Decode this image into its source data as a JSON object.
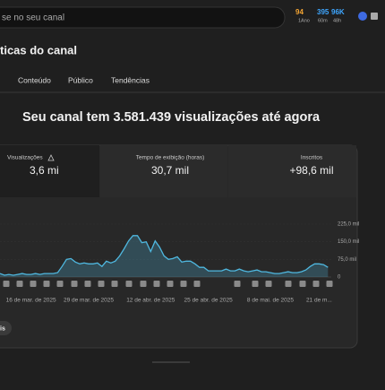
{
  "search": {
    "placeholder": "se no seu canal"
  },
  "stats": [
    {
      "value": 94,
      "label": "1Ano"
    },
    {
      "value": 395,
      "label": "60m"
    },
    {
      "value": "96K",
      "label": "48h"
    }
  ],
  "page_title": "ticas do canal",
  "tabs": [
    "Conteúdo",
    "Público",
    "Tendências"
  ],
  "headline": "Seu canal tem 3.581.439 visualizações até agora",
  "metrics": [
    {
      "label": "Visualizações",
      "value": "3,6 mi"
    },
    {
      "label": "Tempo de exibição (horas)",
      "value": "30,7 mil"
    },
    {
      "label": "Inscritos",
      "value": "+98,6 mil"
    }
  ],
  "chart_data": {
    "type": "line",
    "color": "#4fb8e0",
    "categories": [
      null,
      null,
      null,
      null,
      null,
      null,
      null,
      "16 de mar. de 2025",
      null,
      null,
      null,
      null,
      null,
      null,
      null,
      null,
      null,
      null,
      null,
      null,
      "29 de mar. de 2025",
      null,
      null,
      null,
      null,
      null,
      null,
      null,
      null,
      null,
      null,
      null,
      null,
      null,
      "12 de abr. de 2025",
      null,
      null,
      null,
      null,
      null,
      null,
      null,
      null,
      null,
      null,
      null,
      null,
      "25 de abr. de 2025",
      null,
      null,
      null,
      null,
      null,
      null,
      null,
      null,
      null,
      null,
      null,
      null,
      null,
      "8 de mai. de 2025",
      null,
      null,
      null,
      null,
      null,
      null,
      null,
      null,
      null,
      null,
      "21 de m...",
      null,
      null
    ],
    "values": [
      15000,
      7500,
      11250,
      7500,
      11250,
      15000,
      11250,
      11250,
      15000,
      11250,
      15000,
      15000,
      15000,
      18750,
      45000,
      75000,
      78750,
      63750,
      56250,
      60000,
      56250,
      56250,
      60000,
      45000,
      67500,
      60000,
      67500,
      90000,
      120000,
      153750,
      176250,
      176250,
      146250,
      150000,
      108750,
      153750,
      127500,
      90000,
      75000,
      78750,
      86250,
      63750,
      67500,
      67500,
      56250,
      41250,
      41250,
      26250,
      26250,
      26250,
      26250,
      33750,
      26250,
      26250,
      33750,
      26250,
      22500,
      26250,
      30000,
      22500,
      22500,
      18750,
      15000,
      15000,
      18750,
      22500,
      18750,
      18750,
      22500,
      30000,
      45000,
      56250,
      56250,
      52500,
      41250
    ],
    "ylim": [
      0,
      225000
    ],
    "yticks": [
      {
        "value": 225000,
        "label": "225,0 mil"
      },
      {
        "value": 150000,
        "label": "150,0 mil"
      },
      {
        "value": 75000,
        "label": "75,0 mil"
      },
      0
    ]
  },
  "more_button": "is"
}
